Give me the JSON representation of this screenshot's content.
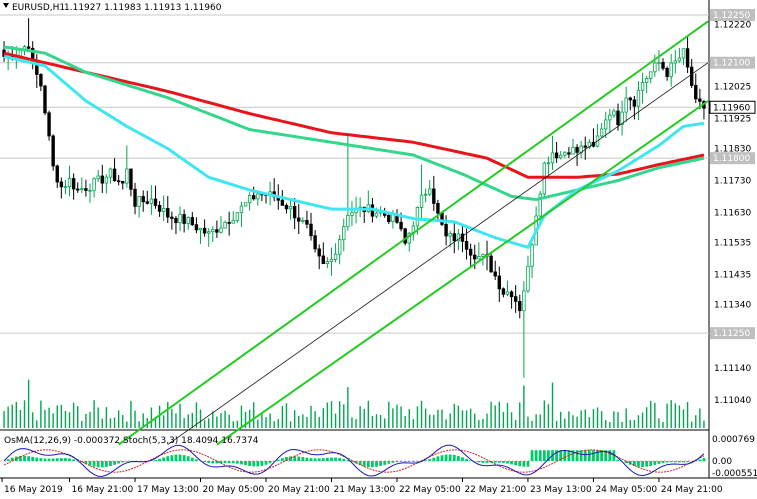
{
  "header": {
    "symbol": "EURUSD,H1",
    "ohlc": "1.11927 1.11983 1.11913 1.11960"
  },
  "indicator_label": "OsMA(12,26,9) -0.000372  Stoch(5,3,3) 18.4094 16.7374",
  "colors": {
    "background": "#ffffff",
    "bull": "#00a651",
    "bear": "#000000",
    "ma_red": "#e8141b",
    "ma_green": "#33d68a",
    "ma_cyan": "#3fe6f0",
    "channel": "#22cc22",
    "volume": "#00a651",
    "osma": "#00cc66",
    "stoch_main": "#1a1ab8",
    "stoch_signal": "#cc2222",
    "price_tag": "#bfbfbf"
  },
  "chart_data": {
    "type": "candlestick",
    "y_axis": {
      "range": [
        1.1104,
        1.1225
      ],
      "labels": [
        "1.12250",
        "1.12220",
        "1.12100",
        "1.12025",
        "1.11925",
        "1.11830",
        "1.11730",
        "1.11630",
        "1.11535",
        "1.11435",
        "1.11340",
        "1.11250",
        "1.11140",
        "1.11040"
      ],
      "label_values": [
        1.1225,
        1.1222,
        1.121,
        1.12025,
        1.11925,
        1.1183,
        1.1173,
        1.1163,
        1.11535,
        1.11435,
        1.1134,
        1.1125,
        1.1114,
        1.1104
      ]
    },
    "price_tags": [
      {
        "label": "1.12250",
        "value": 1.1225
      },
      {
        "label": "1.12100",
        "value": 1.121
      },
      {
        "label": "1.11960",
        "value": 1.1196
      },
      {
        "label": "1.11800",
        "value": 1.118
      },
      {
        "label": "1.11250",
        "value": 1.1125
      }
    ],
    "x_axis": {
      "labels": [
        "16 May 2019",
        "16 May 21:00",
        "17 May 13:00",
        "20 May 05:00",
        "20 May 21:00",
        "21 May 13:00",
        "22 May 05:00",
        "22 May 21:00",
        "23 May 13:00",
        "24 May 05:00",
        "24 May 21:00"
      ],
      "label_index": [
        0,
        16,
        32,
        48,
        64,
        80,
        96,
        112,
        128,
        144,
        160
      ]
    },
    "candle_count": 172,
    "anchors_close": [
      [
        0,
        1.1212
      ],
      [
        3,
        1.1213
      ],
      [
        6,
        1.1216
      ],
      [
        7,
        1.1209
      ],
      [
        9,
        1.1203
      ],
      [
        10,
        1.1195
      ],
      [
        11,
        1.1186
      ],
      [
        12,
        1.1177
      ],
      [
        14,
        1.1171
      ],
      [
        16,
        1.1173
      ],
      [
        18,
        1.117
      ],
      [
        22,
        1.1172
      ],
      [
        26,
        1.1175
      ],
      [
        29,
        1.1172
      ],
      [
        30,
        1.1176
      ],
      [
        32,
        1.1166
      ],
      [
        36,
        1.1167
      ],
      [
        40,
        1.1162
      ],
      [
        45,
        1.116
      ],
      [
        50,
        1.1156
      ],
      [
        56,
        1.1162
      ],
      [
        62,
        1.1169
      ],
      [
        66,
        1.1168
      ],
      [
        70,
        1.1164
      ],
      [
        74,
        1.1158
      ],
      [
        76,
        1.115
      ],
      [
        78,
        1.1146
      ],
      [
        80,
        1.1148
      ],
      [
        82,
        1.1155
      ],
      [
        84,
        1.1163
      ],
      [
        88,
        1.1164
      ],
      [
        92,
        1.1163
      ],
      [
        96,
        1.116
      ],
      [
        98,
        1.1153
      ],
      [
        102,
        1.1167
      ],
      [
        104,
        1.1172
      ],
      [
        106,
        1.1162
      ],
      [
        108,
        1.1155
      ],
      [
        112,
        1.1155
      ],
      [
        114,
        1.1151
      ],
      [
        116,
        1.1149
      ],
      [
        118,
        1.1148
      ],
      [
        120,
        1.1143
      ],
      [
        122,
        1.1138
      ],
      [
        124,
        1.1138
      ],
      [
        126,
        1.1133
      ],
      [
        128,
        1.1145
      ],
      [
        130,
        1.1163
      ],
      [
        132,
        1.1178
      ],
      [
        134,
        1.1182
      ],
      [
        136,
        1.1181
      ],
      [
        138,
        1.1183
      ],
      [
        140,
        1.1182
      ],
      [
        142,
        1.1184
      ],
      [
        144,
        1.1183
      ],
      [
        146,
        1.119
      ],
      [
        148,
        1.1195
      ],
      [
        150,
        1.1192
      ],
      [
        152,
        1.12
      ],
      [
        154,
        1.1198
      ],
      [
        156,
        1.1204
      ],
      [
        158,
        1.1207
      ],
      [
        160,
        1.121
      ],
      [
        162,
        1.1207
      ],
      [
        164,
        1.121
      ],
      [
        166,
        1.1213
      ],
      [
        168,
        1.1203
      ],
      [
        169,
        1.1197
      ],
      [
        171,
        1.1196
      ]
    ],
    "extremes": [
      {
        "index": 6,
        "high": 1.1224
      },
      {
        "index": 30,
        "high": 1.1184
      },
      {
        "index": 84,
        "high": 1.1187
      },
      {
        "index": 102,
        "high": 1.1178
      },
      {
        "index": 127,
        "low": 1.1111
      },
      {
        "index": 134,
        "high": 1.1187
      },
      {
        "index": 166,
        "high": 1.1214
      }
    ],
    "moving_averages": [
      {
        "color_key": "ma_red",
        "anchors": [
          [
            0,
            1.1213
          ],
          [
            20,
            1.1207
          ],
          [
            40,
            1.1201
          ],
          [
            60,
            1.1194
          ],
          [
            80,
            1.1188
          ],
          [
            100,
            1.1185
          ],
          [
            118,
            1.118
          ],
          [
            128,
            1.1174
          ],
          [
            140,
            1.1174
          ],
          [
            150,
            1.1175
          ],
          [
            160,
            1.1178
          ],
          [
            171,
            1.1181
          ]
        ]
      },
      {
        "color_key": "ma_green",
        "anchors": [
          [
            0,
            1.1215
          ],
          [
            10,
            1.1213
          ],
          [
            20,
            1.1207
          ],
          [
            40,
            1.1199
          ],
          [
            60,
            1.1189
          ],
          [
            80,
            1.1185
          ],
          [
            100,
            1.1181
          ],
          [
            112,
            1.1175
          ],
          [
            124,
            1.1168
          ],
          [
            130,
            1.1167
          ],
          [
            140,
            1.117
          ],
          [
            150,
            1.1173
          ],
          [
            160,
            1.1177
          ],
          [
            171,
            1.118
          ]
        ]
      },
      {
        "color_key": "ma_cyan",
        "anchors": [
          [
            0,
            1.1212
          ],
          [
            10,
            1.1209
          ],
          [
            20,
            1.1198
          ],
          [
            30,
            1.119
          ],
          [
            40,
            1.1183
          ],
          [
            50,
            1.1174
          ],
          [
            60,
            1.117
          ],
          [
            70,
            1.1167
          ],
          [
            80,
            1.1164
          ],
          [
            90,
            1.1164
          ],
          [
            100,
            1.1161
          ],
          [
            110,
            1.116
          ],
          [
            120,
            1.1155
          ],
          [
            128,
            1.1152
          ],
          [
            132,
            1.1162
          ],
          [
            140,
            1.117
          ],
          [
            150,
            1.1176
          ],
          [
            160,
            1.1184
          ],
          [
            166,
            1.119
          ],
          [
            171,
            1.1191
          ]
        ]
      }
    ],
    "channel_lines": [
      {
        "from": [
          28,
          1.109
        ],
        "to": [
          172,
          1.1223
        ],
        "style": "solid"
      },
      {
        "from": [
          52,
          1.109
        ],
        "to": [
          172,
          1.1198
        ],
        "style": "solid"
      },
      {
        "from": [
          40,
          1.109
        ],
        "to": [
          172,
          1.121
        ],
        "style": "thin"
      }
    ],
    "volume_spike_index": [
      6,
      84,
      127,
      134
    ]
  }
}
